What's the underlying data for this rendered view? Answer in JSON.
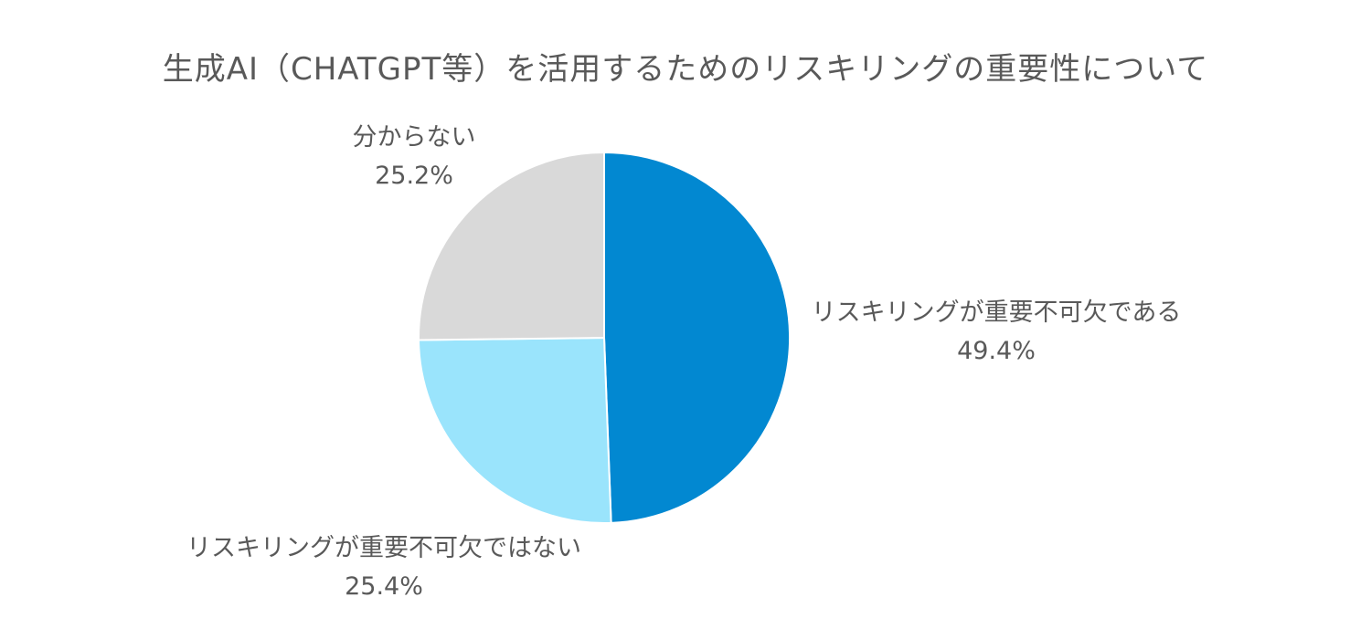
{
  "chart_data": {
    "type": "pie",
    "title": "生成AI（CHATGPT等）を活用するためのリスキリングの重要性について",
    "slices": [
      {
        "label": "リスキリングが重要不可欠である",
        "value": 49.4,
        "value_label": "49.4%",
        "color": "#0288D1"
      },
      {
        "label": "リスキリングが重要不可欠ではない",
        "value": 25.4,
        "value_label": "25.4%",
        "color": "#9AE4FC"
      },
      {
        "label": "分からない",
        "value": 25.2,
        "value_label": "25.2%",
        "color": "#D9D9D9"
      }
    ],
    "start_angle": "12 o'clock",
    "direction": "clockwise",
    "legend": "none (data labels beside slices)"
  }
}
